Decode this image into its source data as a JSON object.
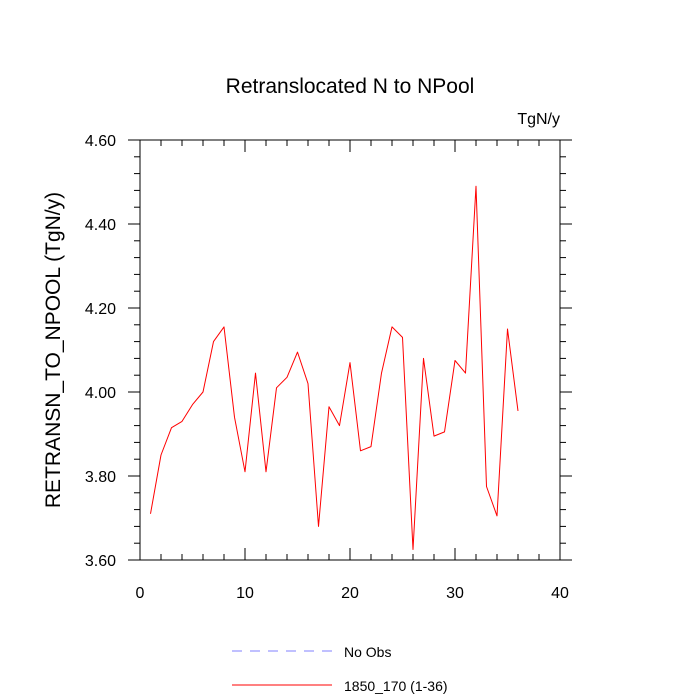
{
  "chart_data": {
    "type": "line",
    "title": "Retranslocated N to NPool",
    "units": "TgN/y",
    "xlabel": "",
    "ylabel": "RETRANSN_TO_NPOOL  (TgN/y)",
    "xlim": [
      0,
      40
    ],
    "ylim": [
      3.6,
      4.6
    ],
    "x_ticks": [
      0,
      10,
      20,
      30,
      40
    ],
    "x_tick_labels": [
      "0",
      "10",
      "20",
      "30",
      "40"
    ],
    "y_ticks": [
      3.6,
      3.8,
      4.0,
      4.2,
      4.4,
      4.6
    ],
    "y_tick_labels": [
      "3.60",
      "3.80",
      "4.00",
      "4.20",
      "4.40",
      "4.60"
    ],
    "grid": false,
    "legend_position": "bottom",
    "legend": [
      {
        "label": "No Obs",
        "color": "#8080ff",
        "dash": "dashed"
      },
      {
        "label": "1850_170 (1-36)",
        "color": "#ff0000",
        "dash": "solid"
      }
    ],
    "series": [
      {
        "name": "1850_170 (1-36)",
        "color": "#ff0000",
        "x": [
          1,
          2,
          3,
          4,
          5,
          6,
          7,
          8,
          9,
          10,
          11,
          12,
          13,
          14,
          15,
          16,
          17,
          18,
          19,
          20,
          21,
          22,
          23,
          24,
          25,
          26,
          27,
          28,
          29,
          30,
          31,
          32,
          33,
          34,
          35,
          36
        ],
        "values": [
          3.71,
          3.85,
          3.915,
          3.93,
          3.97,
          4.0,
          4.12,
          4.155,
          3.94,
          3.81,
          4.045,
          3.81,
          4.01,
          4.035,
          4.095,
          4.02,
          3.68,
          3.965,
          3.92,
          4.07,
          3.86,
          3.87,
          4.045,
          4.155,
          4.13,
          3.625,
          4.08,
          3.895,
          3.905,
          4.075,
          4.045,
          4.49,
          3.775,
          3.705,
          4.15,
          3.955
        ]
      }
    ]
  }
}
